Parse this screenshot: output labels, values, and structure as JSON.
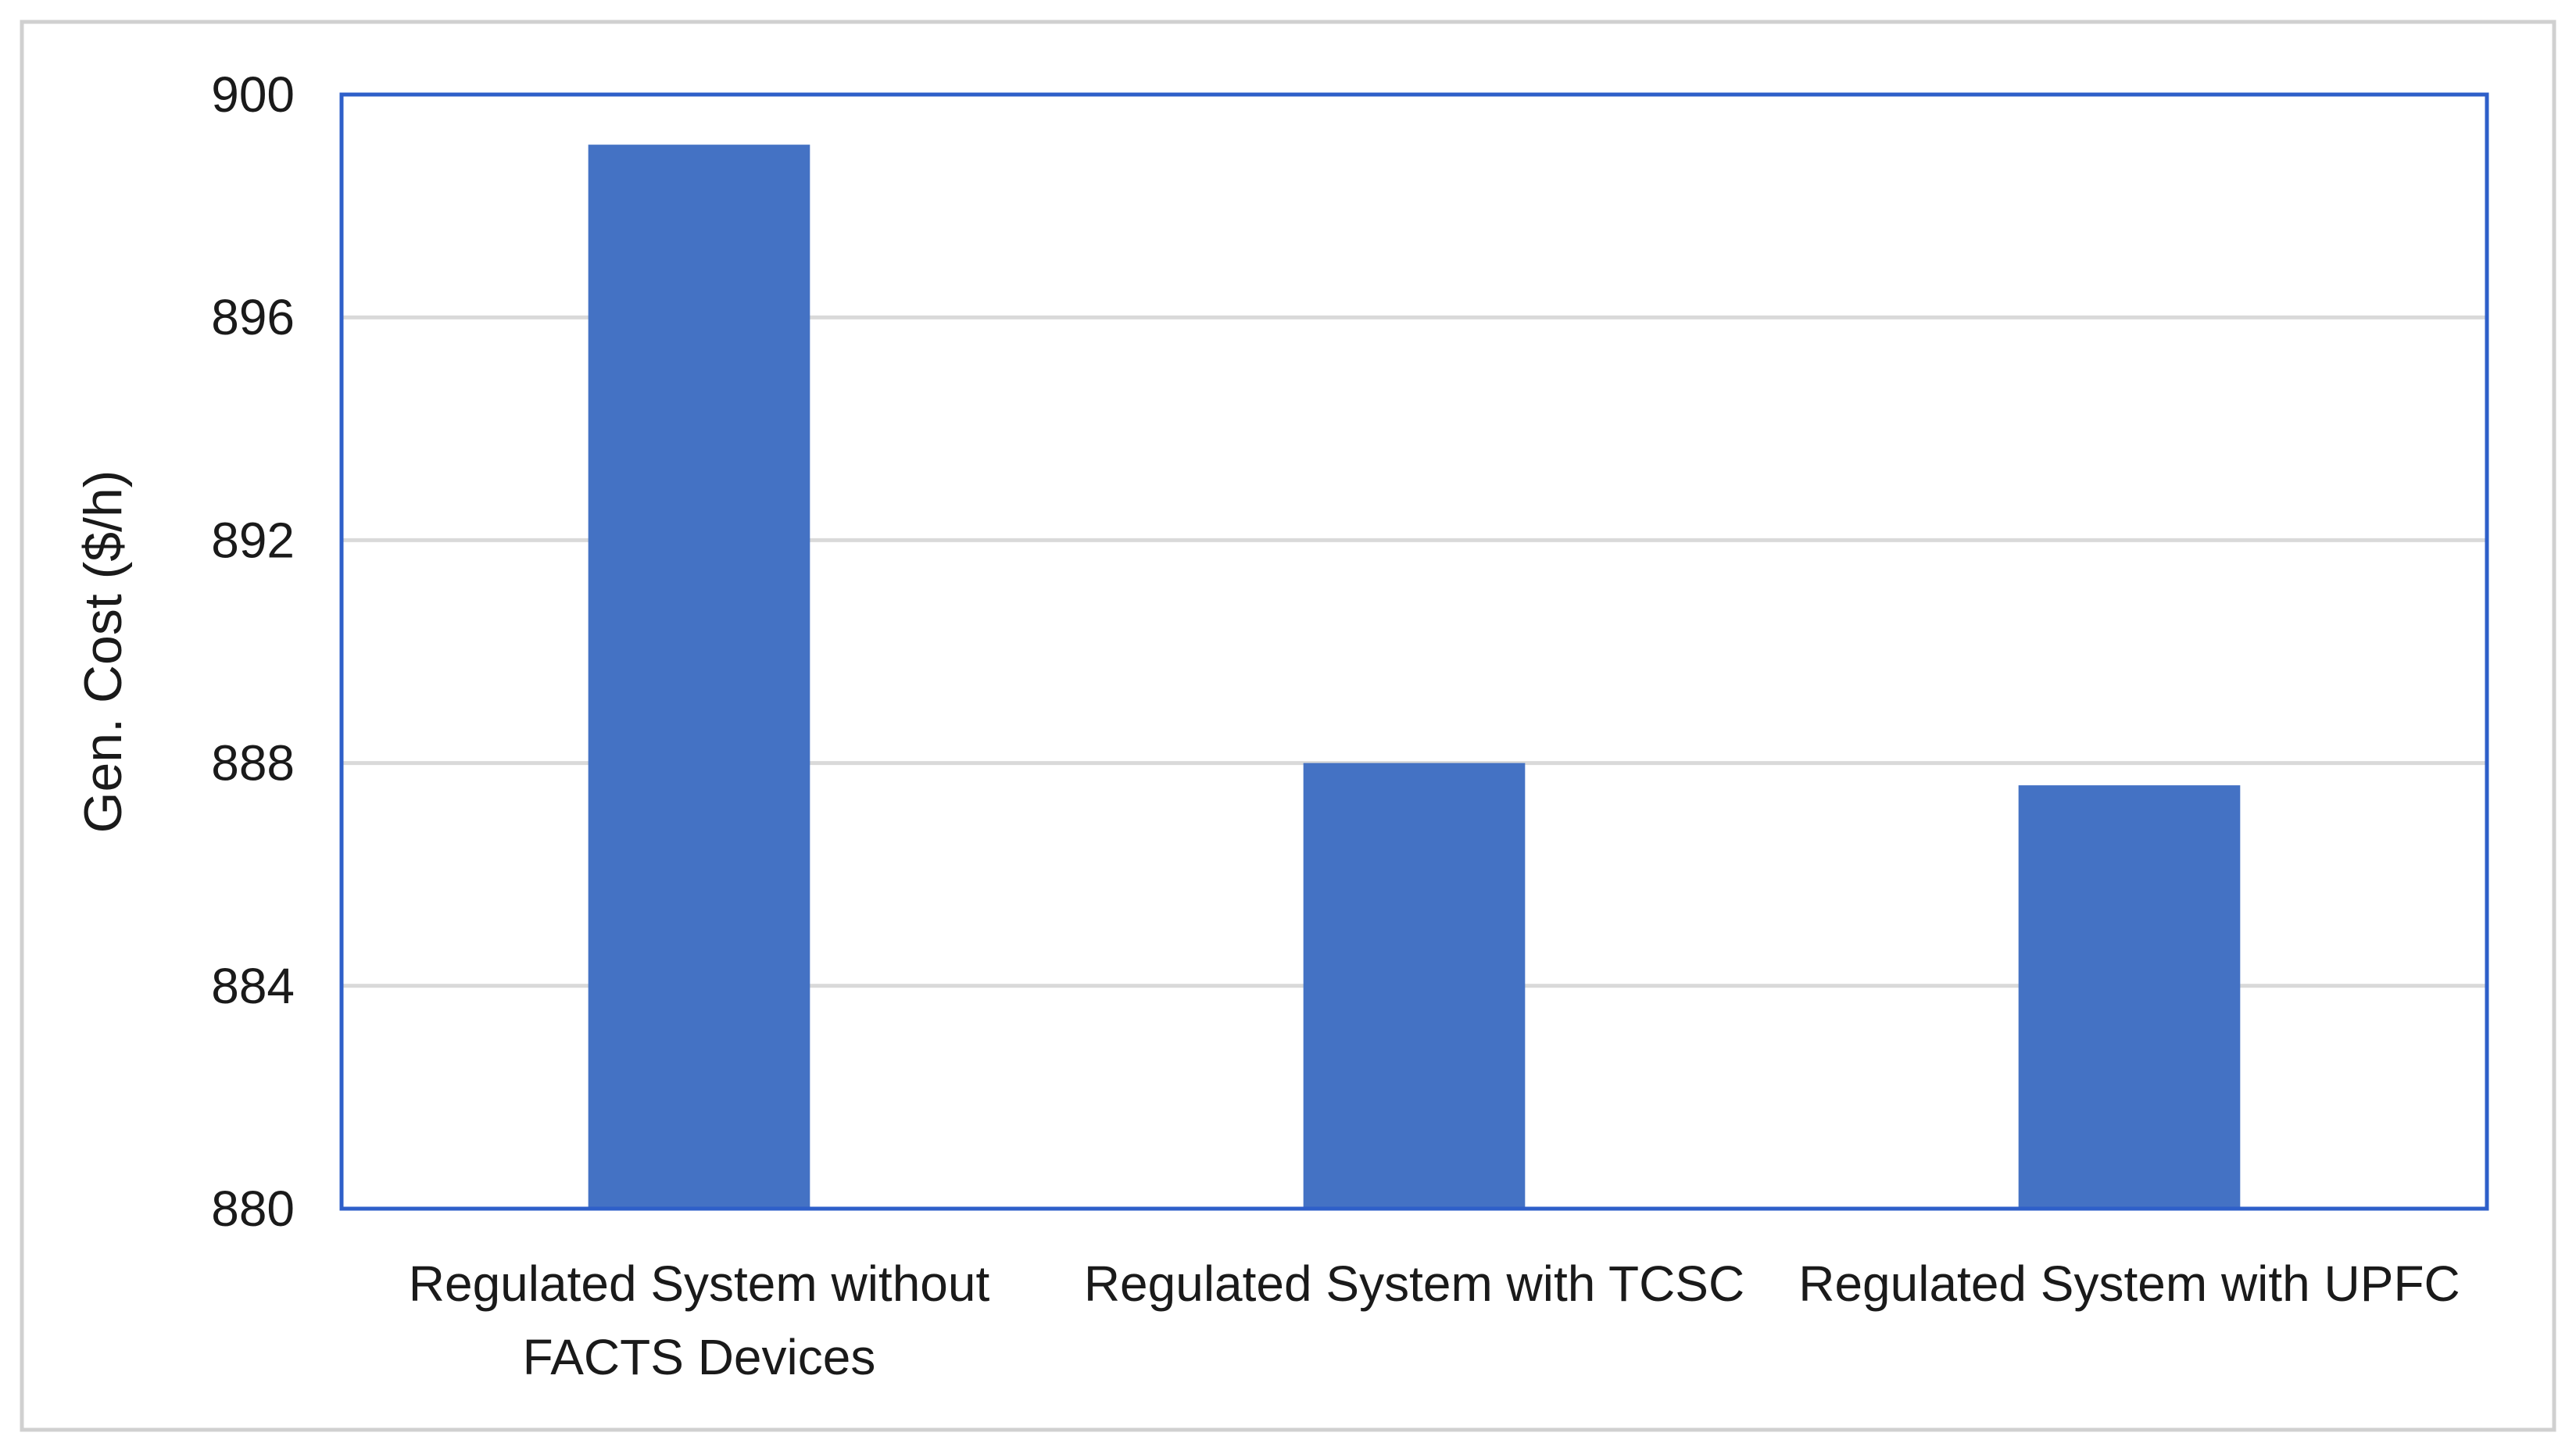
{
  "chart_data": {
    "type": "bar",
    "title": "",
    "xlabel": "",
    "ylabel": "Gen. Cost ($/h)",
    "categories": [
      [
        "Regulated System without",
        "FACTS Devices"
      ],
      [
        "Regulated System with TCSC"
      ],
      [
        "Regulated System with UPFC"
      ]
    ],
    "values": [
      899.1,
      888.0,
      887.6
    ],
    "ylim": [
      880,
      900
    ],
    "yticks": [
      880,
      884,
      888,
      892,
      896,
      900
    ],
    "grid": true,
    "legend": "none",
    "colors": {
      "bar": "#4472C4",
      "plot_border": "#2E5FC9",
      "gridline": "#D9D9D9",
      "outer_border": "#D0D0D0"
    }
  }
}
